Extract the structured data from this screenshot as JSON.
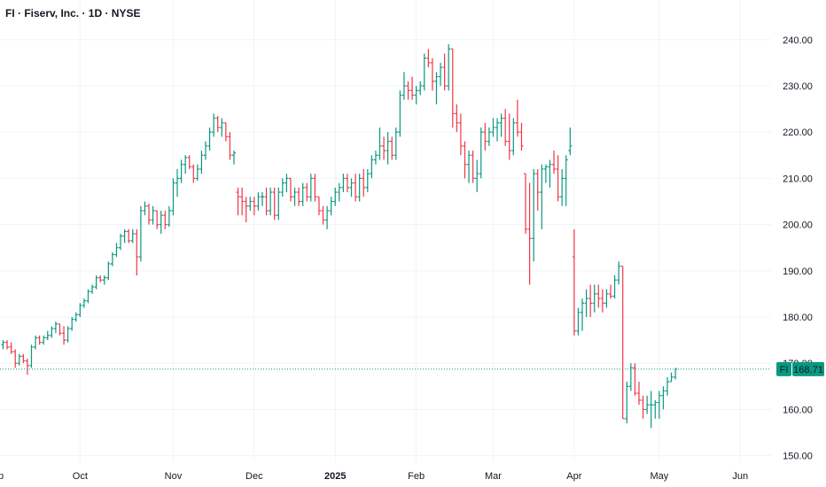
{
  "header": {
    "title": "FI · Fiserv, Inc. · 1D · NYSE"
  },
  "price_label": {
    "ticker": "FI",
    "value": "168.71"
  },
  "colors": {
    "up": "#089981",
    "down": "#f23645",
    "grid": "#f0f3fa",
    "last_line": "#089981",
    "badge": "#089981"
  },
  "chart_data": {
    "type": "ohlc",
    "title": "FI · Fiserv, Inc. · 1D · NYSE",
    "ylim": [
      147,
      244
    ],
    "y_ticks": [
      150,
      160,
      170,
      180,
      190,
      200,
      210,
      220,
      230,
      240
    ],
    "y_tick_labels": [
      "150.00",
      "160.00",
      "170.00",
      "180.00",
      "190.00",
      "200.00",
      "210.00",
      "220.00",
      "230.00",
      "240.00"
    ],
    "x_ticks": [
      {
        "label": "Sep",
        "index": -2,
        "bold": false
      },
      {
        "label": "Oct",
        "index": 19,
        "bold": false
      },
      {
        "label": "Nov",
        "index": 42,
        "bold": false
      },
      {
        "label": "Dec",
        "index": 62,
        "bold": false
      },
      {
        "label": "2025",
        "index": 82,
        "bold": true
      },
      {
        "label": "Feb",
        "index": 102,
        "bold": false
      },
      {
        "label": "Mar",
        "index": 121,
        "bold": false
      },
      {
        "label": "Apr",
        "index": 141,
        "bold": false
      },
      {
        "label": "May",
        "index": 162,
        "bold": false
      },
      {
        "label": "Jun",
        "index": 182,
        "bold": false
      }
    ],
    "last_price": 168.71,
    "grid": true,
    "ohlc": [
      [
        174,
        175,
        173,
        174.5
      ],
      [
        174.5,
        175,
        173,
        173.5
      ],
      [
        173.5,
        174.5,
        172,
        172.5
      ],
      [
        172.5,
        173,
        169,
        170
      ],
      [
        170,
        172,
        169.5,
        171.5
      ],
      [
        171.5,
        172,
        170,
        170.5
      ],
      [
        170.5,
        171,
        167.5,
        169.5
      ],
      [
        169.5,
        174,
        169,
        173.5
      ],
      [
        173.5,
        176,
        173,
        175.5
      ],
      [
        175.5,
        176,
        174,
        174.5
      ],
      [
        174.5,
        176,
        174,
        175.5
      ],
      [
        175.5,
        177,
        175,
        176
      ],
      [
        176,
        178,
        175.5,
        177.5
      ],
      [
        177.5,
        179,
        176.5,
        178.5
      ],
      [
        178.5,
        178.5,
        176,
        176.5
      ],
      [
        176.5,
        178,
        174,
        175
      ],
      [
        175,
        178,
        174.5,
        177.5
      ],
      [
        177.5,
        180,
        177,
        179.5
      ],
      [
        179.5,
        181,
        179,
        180.5
      ],
      [
        180.5,
        183,
        180,
        182.5
      ],
      [
        182.5,
        184,
        182,
        183.5
      ],
      [
        183.5,
        186,
        183,
        185.5
      ],
      [
        185.5,
        187,
        185,
        186.5
      ],
      [
        186.5,
        189,
        186,
        188.5
      ],
      [
        188.5,
        189,
        187.5,
        188
      ],
      [
        188,
        189,
        187,
        188.5
      ],
      [
        188.5,
        192,
        188,
        191.5
      ],
      [
        191.5,
        194,
        191,
        193.5
      ],
      [
        193.5,
        196,
        193,
        195
      ],
      [
        195,
        198,
        194.5,
        197.5
      ],
      [
        197.5,
        199,
        196,
        198.5
      ],
      [
        198.5,
        199,
        196,
        196.5
      ],
      [
        196.5,
        199,
        196,
        198
      ],
      [
        198,
        199,
        189,
        193
      ],
      [
        193,
        204,
        192,
        203
      ],
      [
        203,
        205,
        202,
        204
      ],
      [
        204,
        204.5,
        200,
        201
      ],
      [
        201,
        204,
        200,
        203
      ],
      [
        203,
        203,
        199,
        200
      ],
      [
        200,
        203,
        198,
        202
      ],
      [
        202,
        203,
        199,
        200
      ],
      [
        200,
        204,
        199.5,
        203
      ],
      [
        203,
        210,
        202,
        209
      ],
      [
        209,
        212,
        206,
        210
      ],
      [
        210,
        214,
        209,
        213
      ],
      [
        213,
        215,
        211,
        214.5
      ],
      [
        214.5,
        215,
        212,
        212.5
      ],
      [
        212.5,
        213,
        209,
        210
      ],
      [
        210,
        213,
        209.5,
        212
      ],
      [
        212,
        216,
        211,
        215
      ],
      [
        215,
        218,
        214,
        217
      ],
      [
        217,
        221,
        216,
        220
      ],
      [
        220,
        224,
        219,
        223
      ],
      [
        223,
        223.5,
        220,
        221
      ],
      [
        221,
        223,
        219,
        222
      ],
      [
        222,
        222,
        218,
        219
      ],
      [
        219,
        220,
        214,
        215
      ],
      [
        215,
        216,
        213,
        215.5
      ],
      [
        207,
        208,
        202,
        206
      ],
      [
        206,
        208,
        202,
        205
      ],
      [
        205,
        206,
        200.5,
        204
      ],
      [
        204,
        206,
        203,
        205
      ],
      [
        205,
        206,
        202,
        204
      ],
      [
        204,
        207,
        203,
        206
      ],
      [
        206,
        207,
        204,
        206
      ],
      [
        206,
        208,
        202,
        203
      ],
      [
        203,
        208,
        202,
        207
      ],
      [
        207,
        208,
        201,
        202
      ],
      [
        202,
        208,
        201,
        207
      ],
      [
        207,
        210,
        206,
        209
      ],
      [
        209,
        211,
        207,
        210
      ],
      [
        210,
        210,
        205,
        206
      ],
      [
        206,
        208,
        204,
        207
      ],
      [
        207,
        208,
        204,
        205
      ],
      [
        205,
        209,
        204,
        208
      ],
      [
        208,
        209,
        205,
        206
      ],
      [
        206,
        211,
        205,
        210
      ],
      [
        210,
        211,
        205,
        206
      ],
      [
        206,
        206,
        202,
        203
      ],
      [
        203,
        204,
        200,
        201
      ],
      [
        201,
        204,
        199,
        203
      ],
      [
        203,
        206,
        202,
        205
      ],
      [
        205,
        208,
        204,
        207
      ],
      [
        207,
        209,
        205,
        208
      ],
      [
        208,
        211,
        207,
        210
      ],
      [
        210,
        211,
        207,
        208
      ],
      [
        208,
        210,
        206,
        209
      ],
      [
        209,
        211,
        205,
        206
      ],
      [
        206,
        211,
        205,
        210
      ],
      [
        210,
        212,
        206,
        208
      ],
      [
        208,
        212,
        207,
        211
      ],
      [
        211,
        215,
        210,
        214
      ],
      [
        214,
        216,
        213,
        215
      ],
      [
        215,
        221,
        214,
        217
      ],
      [
        217,
        219,
        214,
        216
      ],
      [
        216,
        220,
        213,
        218
      ],
      [
        218,
        219,
        214,
        215
      ],
      [
        215,
        221,
        214,
        220
      ],
      [
        220,
        229,
        219,
        228
      ],
      [
        228,
        233,
        227,
        230
      ],
      [
        230,
        231,
        227,
        229
      ],
      [
        229,
        232,
        227,
        228
      ],
      [
        228,
        230,
        226,
        229
      ],
      [
        229,
        231,
        228,
        230
      ],
      [
        230,
        237,
        229,
        236
      ],
      [
        236,
        238,
        234,
        235
      ],
      [
        235,
        236,
        229,
        231
      ],
      [
        231,
        233,
        226,
        232
      ],
      [
        232,
        235,
        230,
        234
      ],
      [
        234,
        237,
        229,
        230
      ],
      [
        230,
        239,
        229,
        238
      ],
      [
        238,
        238,
        221,
        224
      ],
      [
        224,
        226,
        220,
        222
      ],
      [
        222,
        224,
        215,
        217
      ],
      [
        217,
        218,
        210,
        213
      ],
      [
        213,
        216,
        209,
        215
      ],
      [
        215,
        216,
        209,
        210
      ],
      [
        210,
        214,
        207,
        211
      ],
      [
        211,
        221,
        210,
        220
      ],
      [
        220,
        222,
        216,
        218
      ],
      [
        218,
        221,
        217,
        220
      ],
      [
        220,
        223,
        219,
        221
      ],
      [
        221,
        223,
        218,
        222
      ],
      [
        222,
        224,
        219,
        223
      ],
      [
        223,
        225,
        217,
        218
      ],
      [
        218,
        224,
        214,
        216
      ],
      [
        216,
        223,
        215,
        222
      ],
      [
        222,
        227,
        219,
        220
      ],
      [
        220,
        222,
        216,
        217
      ],
      [
        211,
        211,
        198,
        199
      ],
      [
        199,
        209,
        187,
        197
      ],
      [
        197,
        212,
        192,
        211
      ],
      [
        211,
        212,
        203,
        207
      ],
      [
        207,
        213,
        199,
        212
      ],
      [
        212,
        213,
        209,
        212.5
      ],
      [
        212.5,
        214,
        208,
        213
      ],
      [
        213,
        216,
        211,
        212
      ],
      [
        212,
        215,
        205,
        206
      ],
      [
        206,
        212,
        204,
        210
      ],
      [
        210,
        215,
        204,
        214
      ],
      [
        216,
        221,
        215,
        217
      ],
      [
        193,
        199,
        176,
        177
      ],
      [
        177,
        182,
        176,
        181
      ],
      [
        181,
        184,
        177,
        183
      ],
      [
        183,
        186,
        180,
        184
      ],
      [
        184,
        187,
        180,
        183
      ],
      [
        183,
        187,
        181,
        185
      ],
      [
        185,
        187,
        182,
        184
      ],
      [
        184,
        186,
        181,
        183
      ],
      [
        183,
        186,
        182,
        185
      ],
      [
        185,
        187,
        184,
        184.5
      ],
      [
        184.5,
        189,
        184,
        188
      ],
      [
        188,
        192,
        187,
        191
      ],
      [
        191,
        191,
        158,
        158
      ],
      [
        158,
        166,
        157,
        165
      ],
      [
        165,
        170,
        164,
        169
      ],
      [
        169,
        170,
        163,
        163.5
      ],
      [
        163.5,
        166,
        161,
        162
      ],
      [
        162,
        163,
        158,
        160
      ],
      [
        160,
        163,
        159,
        161
      ],
      [
        161,
        164,
        156,
        161
      ],
      [
        161,
        162,
        158,
        161.5
      ],
      [
        161.5,
        164,
        158,
        163
      ],
      [
        163,
        165,
        160,
        164
      ],
      [
        164,
        167,
        163,
        166
      ],
      [
        166,
        168,
        166,
        167
      ],
      [
        167,
        169,
        166.5,
        168.71
      ]
    ]
  }
}
